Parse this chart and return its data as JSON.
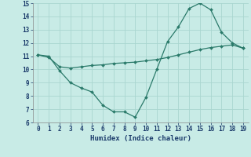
{
  "line1_x": [
    0,
    1,
    2,
    3,
    4,
    5,
    6,
    7,
    8,
    9,
    10,
    11,
    12,
    13,
    14,
    15,
    16,
    17,
    18,
    19
  ],
  "line1_y": [
    11.1,
    11.0,
    9.9,
    9.0,
    8.6,
    8.3,
    7.3,
    6.8,
    6.8,
    6.4,
    7.9,
    10.0,
    12.1,
    13.2,
    14.6,
    15.0,
    14.5,
    12.8,
    12.0,
    11.6
  ],
  "line2_x": [
    0,
    1,
    2,
    3,
    4,
    5,
    6,
    7,
    8,
    9,
    10,
    11,
    12,
    13,
    14,
    15,
    16,
    17,
    18,
    19
  ],
  "line2_y": [
    11.1,
    10.9,
    10.2,
    10.1,
    10.2,
    10.3,
    10.35,
    10.45,
    10.5,
    10.55,
    10.65,
    10.75,
    10.9,
    11.1,
    11.3,
    11.5,
    11.65,
    11.75,
    11.85,
    11.6
  ],
  "line_color": "#2a7a6a",
  "bg_color": "#c8ebe6",
  "grid_major_color": "#aad6d0",
  "grid_minor_color": "#bbdfd9",
  "xlabel": "Humidex (Indice chaleur)",
  "ylim": [
    6,
    15
  ],
  "xlim": [
    -0.5,
    19.5
  ],
  "yticks": [
    6,
    7,
    8,
    9,
    10,
    11,
    12,
    13,
    14,
    15
  ],
  "xticks": [
    0,
    1,
    2,
    3,
    4,
    5,
    6,
    7,
    8,
    9,
    10,
    11,
    12,
    13,
    14,
    15,
    16,
    17,
    18,
    19
  ],
  "tick_fontsize": 5.5,
  "xlabel_fontsize": 6.5,
  "tick_color": "#1a3a6a",
  "xlabel_color": "#1a3a6a"
}
